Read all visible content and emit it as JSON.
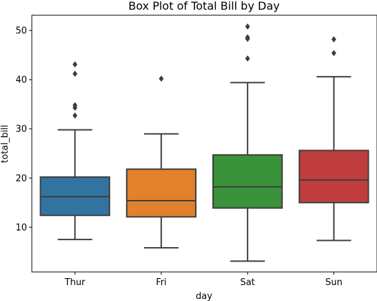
{
  "chart_data": {
    "type": "box",
    "title": "Box Plot of Total Bill by Day",
    "xlabel": "day",
    "ylabel": "total_bill",
    "ylim": [
      0.9,
      53.1
    ],
    "yticks": [
      10,
      20,
      30,
      40,
      50
    ],
    "ytick_labels": [
      "10",
      "20",
      "30",
      "40",
      "50"
    ],
    "grid": false,
    "categories": [
      "Thur",
      "Fri",
      "Sat",
      "Sun"
    ],
    "boxes": [
      {
        "category": "Thur",
        "color": "#3274a1",
        "whisker_low": 7.5,
        "q1": 12.4,
        "median": 16.2,
        "q3": 20.2,
        "whisker_high": 29.8,
        "outliers": [
          32.7,
          34.3,
          34.8,
          41.2,
          43.1
        ]
      },
      {
        "category": "Fri",
        "color": "#e1812c",
        "whisker_low": 5.8,
        "q1": 12.1,
        "median": 15.4,
        "q3": 21.8,
        "whisker_high": 28.97,
        "outliers": [
          40.2
        ]
      },
      {
        "category": "Sat",
        "color": "#3a923a",
        "whisker_low": 3.1,
        "q1": 13.9,
        "median": 18.2,
        "q3": 24.7,
        "whisker_high": 39.4,
        "outliers": [
          44.3,
          48.3,
          48.6,
          50.8
        ]
      },
      {
        "category": "Sun",
        "color": "#c03d3e",
        "whisker_low": 7.3,
        "q1": 15.0,
        "median": 19.6,
        "q3": 25.6,
        "whisker_high": 40.6,
        "outliers": [
          45.4,
          48.2
        ]
      }
    ]
  }
}
